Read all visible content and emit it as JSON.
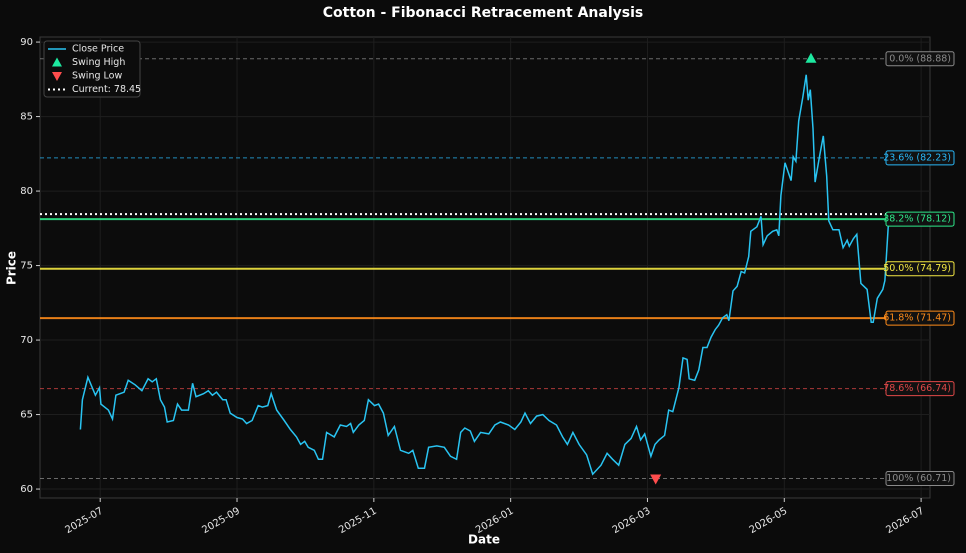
{
  "chart_data": {
    "type": "line",
    "title": "Cotton - Fibonacci Retracement Analysis",
    "x_label": "Date",
    "y_label": "Price",
    "xlim": [
      -0.88,
      12.13
    ],
    "ylim": [
      59.4,
      90.34
    ],
    "xticks": [
      {
        "value": 0,
        "label": "2025-07"
      },
      {
        "value": 2,
        "label": "2025-09"
      },
      {
        "value": 4,
        "label": "2025-11"
      },
      {
        "value": 6,
        "label": "2026-01"
      },
      {
        "value": 8,
        "label": "2026-03"
      },
      {
        "value": 10,
        "label": "2026-05"
      },
      {
        "value": 12,
        "label": "2026-07"
      }
    ],
    "yticks": [
      60,
      65,
      70,
      75,
      80,
      85,
      90
    ],
    "grid": true,
    "legend": "upper left",
    "series": [
      {
        "name": "Close Price",
        "color": "#29c4f2",
        "x": [
          -0.29,
          -0.26,
          -0.18,
          -0.07,
          -0.01,
          0.01,
          0.12,
          0.18,
          0.23,
          0.35,
          0.41,
          0.51,
          0.61,
          0.7,
          0.76,
          0.82,
          0.88,
          0.94,
          0.98,
          1.07,
          1.13,
          1.19,
          1.29,
          1.35,
          1.4,
          1.51,
          1.58,
          1.64,
          1.7,
          1.79,
          1.84,
          1.9,
          2.0,
          2.08,
          2.14,
          2.22,
          2.31,
          2.37,
          2.45,
          2.5,
          2.58,
          2.69,
          2.78,
          2.87,
          2.93,
          2.99,
          3.04,
          3.13,
          3.19,
          3.25,
          3.31,
          3.42,
          3.51,
          3.6,
          3.66,
          3.7,
          3.78,
          3.86,
          3.92,
          4.01,
          4.07,
          4.14,
          4.21,
          4.3,
          4.39,
          4.51,
          4.57,
          4.65,
          4.74,
          4.8,
          4.92,
          5.03,
          5.12,
          5.21,
          5.27,
          5.33,
          5.41,
          5.47,
          5.56,
          5.68,
          5.77,
          5.85,
          5.97,
          6.06,
          6.15,
          6.21,
          6.29,
          6.38,
          6.47,
          6.56,
          6.67,
          6.76,
          6.83,
          6.91,
          7.0,
          7.11,
          7.2,
          7.32,
          7.41,
          7.49,
          7.58,
          7.67,
          7.76,
          7.84,
          7.9,
          7.96,
          8.05,
          8.11,
          8.17,
          8.25,
          8.31,
          8.37,
          8.46,
          8.52,
          8.58,
          8.61,
          8.69,
          8.75,
          8.81,
          8.87,
          8.93,
          8.99,
          9.04,
          9.1,
          9.16,
          9.19,
          9.25,
          9.31,
          9.37,
          9.42,
          9.48,
          9.51,
          9.6,
          9.66,
          9.69,
          9.75,
          9.83,
          9.89,
          9.92,
          9.95,
          10.01,
          10.1,
          10.13,
          10.17,
          10.21,
          10.27,
          10.32,
          10.35,
          10.38,
          10.42,
          10.45,
          10.51,
          10.57,
          10.62,
          10.65,
          10.71,
          10.8,
          10.86,
          10.92,
          10.95,
          11.01,
          11.06,
          11.12,
          11.21,
          11.27,
          11.3,
          11.36,
          11.44,
          11.47,
          11.53
        ],
        "values": [
          64.0,
          66.0,
          67.5,
          66.3,
          66.8,
          65.7,
          65.3,
          64.7,
          66.3,
          66.5,
          67.3,
          67.0,
          66.6,
          67.4,
          67.2,
          67.4,
          66.0,
          65.5,
          64.5,
          64.6,
          65.7,
          65.3,
          65.3,
          67.1,
          66.2,
          66.4,
          66.6,
          66.3,
          66.5,
          66.0,
          66.0,
          65.1,
          64.8,
          64.7,
          64.4,
          64.6,
          65.6,
          65.5,
          65.6,
          66.4,
          65.3,
          64.6,
          64.0,
          63.5,
          63.0,
          63.2,
          62.8,
          62.6,
          62.0,
          62.0,
          63.8,
          63.5,
          64.3,
          64.2,
          64.4,
          63.8,
          64.3,
          64.6,
          66.0,
          65.6,
          65.7,
          65.1,
          63.6,
          64.2,
          62.6,
          62.4,
          62.6,
          61.4,
          61.4,
          62.8,
          62.9,
          62.8,
          62.2,
          62.0,
          63.8,
          64.1,
          63.9,
          63.2,
          63.8,
          63.7,
          64.3,
          64.5,
          64.3,
          64.0,
          64.5,
          65.1,
          64.4,
          64.9,
          65.0,
          64.6,
          64.3,
          63.5,
          63.0,
          63.8,
          63.0,
          62.3,
          61.0,
          61.6,
          62.4,
          62.0,
          61.6,
          63.0,
          63.4,
          64.2,
          63.3,
          63.7,
          62.2,
          63.0,
          63.3,
          63.6,
          65.3,
          65.2,
          66.8,
          68.8,
          68.7,
          67.4,
          67.3,
          68.0,
          69.5,
          69.5,
          70.2,
          70.7,
          71.0,
          71.5,
          71.7,
          71.3,
          73.3,
          73.6,
          74.6,
          74.5,
          75.6,
          77.3,
          77.6,
          78.3,
          76.4,
          77.0,
          77.3,
          77.4,
          77.0,
          79.7,
          81.9,
          80.7,
          82.3,
          82.0,
          84.7,
          86.3,
          87.8,
          86.1,
          86.8,
          84.2,
          80.6,
          82.2,
          83.7,
          81.0,
          78.0,
          77.4,
          77.4,
          76.2,
          76.7,
          76.3,
          76.8,
          77.1,
          73.8,
          73.4,
          71.2,
          71.2,
          72.8,
          73.4,
          74.0,
          78.45
        ]
      }
    ],
    "swing_high": {
      "name": "Swing High",
      "color": "#1de9a0",
      "x": 10.39,
      "value": 88.88
    },
    "swing_low": {
      "name": "Swing Low",
      "color": "#ff4d4d",
      "x": 8.12,
      "value": 60.71
    },
    "current": {
      "name": "Current: 78.45",
      "color": "#ffffff",
      "value": 78.45
    },
    "levels": [
      {
        "label": "0.0% (88.88)",
        "value": 88.88,
        "color": "#8a8a8a",
        "style": "dashed"
      },
      {
        "label": "23.6% (82.23)",
        "value": 82.23,
        "color": "#29b6f6",
        "style": "dashed"
      },
      {
        "label": "38.2% (78.12)",
        "value": 78.12,
        "color": "#2ee88a",
        "style": "solid"
      },
      {
        "label": "50.0% (74.79)",
        "value": 74.79,
        "color": "#f4e842",
        "style": "solid"
      },
      {
        "label": "61.8% (71.47)",
        "value": 71.47,
        "color": "#ff8c1a",
        "style": "solid"
      },
      {
        "label": "78.6% (66.74)",
        "value": 66.74,
        "color": "#e04848",
        "style": "dashed"
      },
      {
        "label": "100% (60.71)",
        "value": 60.71,
        "color": "#8a8a8a",
        "style": "dashed"
      }
    ]
  }
}
